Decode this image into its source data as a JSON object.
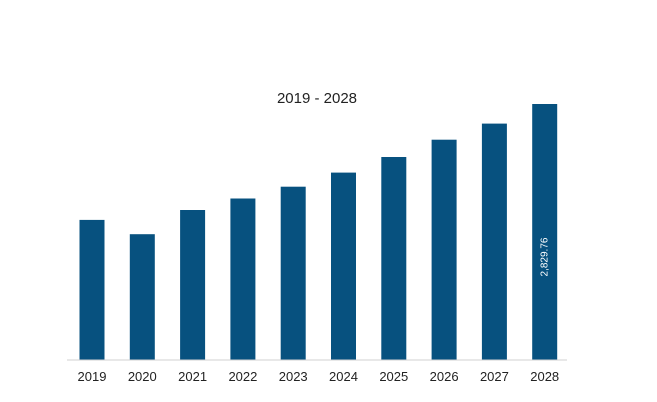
{
  "chart_data": {
    "type": "bar",
    "title": "2019 - 2028",
    "categories": [
      "2019",
      "2020",
      "2021",
      "2022",
      "2023",
      "2024",
      "2025",
      "2026",
      "2027",
      "2028"
    ],
    "values": [
      1549.0,
      1391.0,
      1658.0,
      1785.0,
      1916.0,
      2071.0,
      2244.0,
      2435.0,
      2613.0,
      2829.76
    ],
    "data_labels": [
      "",
      "",
      "",
      "",
      "",
      "",
      "",
      "",
      "",
      "2,829.76"
    ],
    "xlabel": "",
    "ylabel": "",
    "ylim": [
      0,
      2829.76
    ],
    "grid": false,
    "legend": "none",
    "colors": {
      "bar": "#07517F",
      "axis": "#d0d0d0",
      "text": "#222222"
    }
  }
}
